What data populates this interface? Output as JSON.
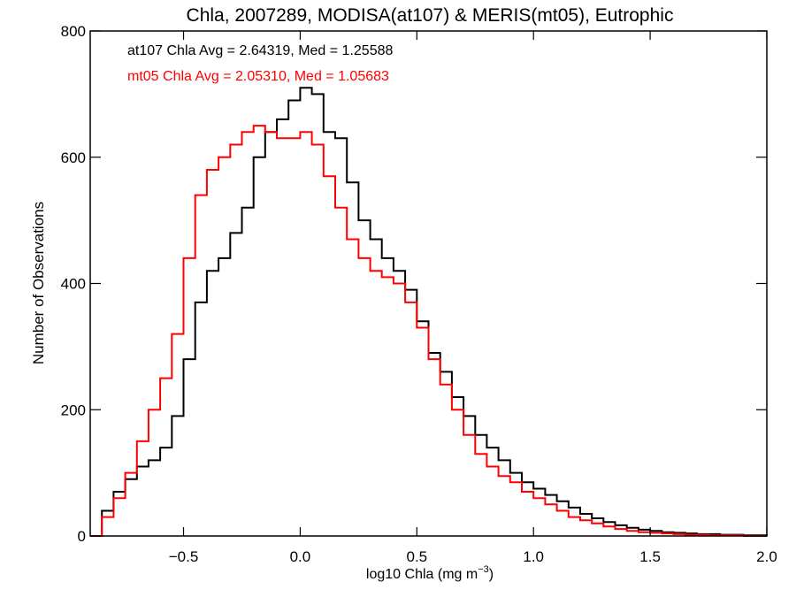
{
  "chart_data": {
    "type": "line",
    "step": true,
    "title": "Chla, 2007289, MODISA(at107) & MERIS(mt05), Eutrophic",
    "xlabel_main": "log10 Chla (mg m",
    "xlabel_exp": "−3",
    "xlabel_close": ")",
    "ylabel": "Number of Observations",
    "xlim": [
      -0.9,
      2.0
    ],
    "ylim": [
      0,
      800
    ],
    "x_ticks": [
      -0.5,
      0.0,
      0.5,
      1.0,
      1.5,
      2.0
    ],
    "x_tick_labels": [
      "−0.5",
      "0.0",
      "0.5",
      "1.0",
      "1.5",
      "2.0"
    ],
    "y_ticks": [
      0,
      200,
      400,
      600,
      800
    ],
    "y_tick_labels": [
      "0",
      "200",
      "400",
      "600",
      "800"
    ],
    "grid": false,
    "annotations": [
      {
        "text": "at107 Chla Avg = 2.64319, Med = 1.25588",
        "color": "#000000"
      },
      {
        "text": "mt05 Chla Avg = 2.05310, Med = 1.05683",
        "color": "#ff0000"
      }
    ],
    "series": [
      {
        "color": "#000000",
        "x": [
          -0.9,
          -0.85,
          -0.8,
          -0.75,
          -0.7,
          -0.65,
          -0.6,
          -0.55,
          -0.5,
          -0.45,
          -0.4,
          -0.35,
          -0.3,
          -0.25,
          -0.2,
          -0.15,
          -0.1,
          -0.05,
          0.0,
          0.05,
          0.1,
          0.15,
          0.2,
          0.25,
          0.3,
          0.35,
          0.4,
          0.45,
          0.5,
          0.55,
          0.6,
          0.65,
          0.7,
          0.75,
          0.8,
          0.85,
          0.9,
          0.95,
          1.0,
          1.05,
          1.1,
          1.15,
          1.2,
          1.25,
          1.3,
          1.35,
          1.4,
          1.45,
          1.5,
          1.55,
          1.6,
          1.65,
          1.7,
          1.75,
          1.8,
          1.85,
          1.9,
          1.95,
          2.0
        ],
        "values": [
          0,
          40,
          70,
          90,
          110,
          120,
          140,
          190,
          280,
          370,
          420,
          440,
          480,
          520,
          600,
          640,
          660,
          690,
          710,
          700,
          640,
          630,
          560,
          500,
          470,
          440,
          420,
          390,
          340,
          290,
          260,
          220,
          190,
          160,
          140,
          120,
          100,
          85,
          75,
          65,
          55,
          45,
          35,
          28,
          22,
          17,
          13,
          10,
          8,
          6,
          5,
          4,
          3,
          3,
          2,
          2,
          1,
          1,
          0
        ]
      },
      {
        "color": "#ff0000",
        "x": [
          -0.9,
          -0.85,
          -0.8,
          -0.75,
          -0.7,
          -0.65,
          -0.6,
          -0.55,
          -0.5,
          -0.45,
          -0.4,
          -0.35,
          -0.3,
          -0.25,
          -0.2,
          -0.15,
          -0.1,
          -0.05,
          0.0,
          0.05,
          0.1,
          0.15,
          0.2,
          0.25,
          0.3,
          0.35,
          0.4,
          0.45,
          0.5,
          0.55,
          0.6,
          0.65,
          0.7,
          0.75,
          0.8,
          0.85,
          0.9,
          0.95,
          1.0,
          1.05,
          1.1,
          1.15,
          1.2,
          1.25,
          1.3,
          1.35,
          1.4,
          1.45,
          1.5,
          1.55,
          1.6,
          1.65,
          1.7,
          1.75,
          1.8,
          1.85,
          1.9,
          1.95,
          2.0
        ],
        "values": [
          0,
          30,
          60,
          100,
          150,
          200,
          250,
          320,
          440,
          540,
          580,
          600,
          620,
          640,
          650,
          640,
          630,
          630,
          640,
          620,
          570,
          520,
          470,
          440,
          420,
          410,
          400,
          370,
          330,
          280,
          240,
          200,
          160,
          130,
          110,
          95,
          85,
          70,
          60,
          50,
          40,
          30,
          25,
          20,
          15,
          11,
          8,
          6,
          5,
          4,
          3,
          2,
          2,
          1,
          1,
          1,
          0,
          0,
          0
        ]
      }
    ]
  }
}
